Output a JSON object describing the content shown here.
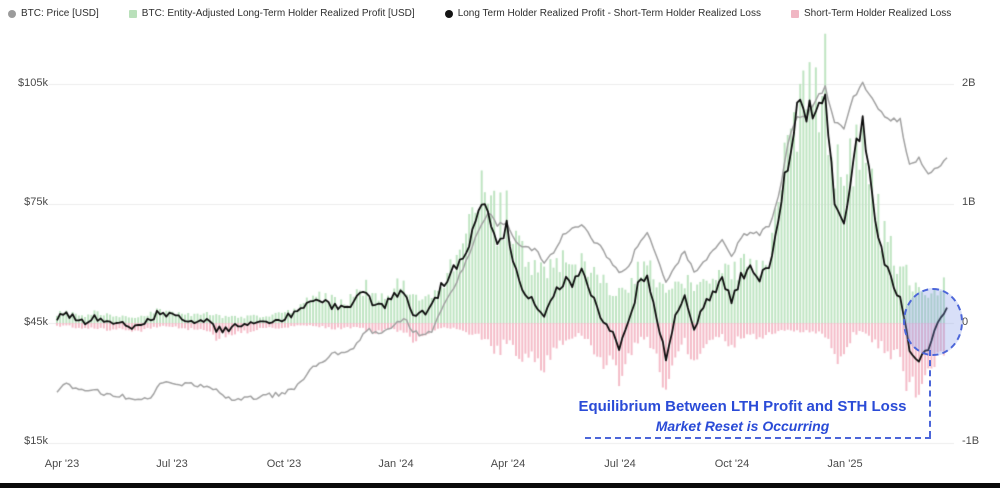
{
  "legend": {
    "items": [
      {
        "label": "BTC: Price [USD]",
        "color": "#9b9b9b",
        "marker": "circle"
      },
      {
        "label": "BTC: Entity-Adjusted Long-Term Holder Realized Profit [USD]",
        "color": "#b9e0ba",
        "marker": "square"
      },
      {
        "label": "Long Term Holder Realized Profit - Short-Term Holder Realized Loss",
        "color": "#141414",
        "marker": "circle"
      },
      {
        "label": "Short-Term Holder Realized Loss",
        "color": "#f0b6c3",
        "marker": "square"
      }
    ]
  },
  "axes": {
    "price_ticks": [
      "$105k",
      "$75k",
      "$45k",
      "$15k"
    ],
    "value_ticks": [
      "2B",
      "1B",
      "0",
      "-1B"
    ],
    "x_ticks": [
      "Apr '23",
      "Jul '23",
      "Oct '23",
      "Jan '24",
      "Apr '24",
      "Jul '24",
      "Oct '24",
      "Jan '25"
    ]
  },
  "annotation": {
    "line1": "Equilibrium Between LTH Profit and STH Loss",
    "line2": "Market Reset is Occurring",
    "color": "#2a4bd7"
  },
  "chart_data": {
    "type": "line",
    "x_start": "Apr 2023",
    "x_end": "Mar 2025",
    "x_unit": "week",
    "price_axis": {
      "tick_values_usd": [
        105000,
        75000,
        45000,
        15000
      ]
    },
    "value_axis": {
      "tick_values_B": [
        2,
        1,
        0,
        -1
      ]
    },
    "series": [
      {
        "name": "BTC: Price [USD]",
        "type": "line",
        "axis": "price",
        "color": "#a2a2a2",
        "values_k": [
          28.2,
          29.4,
          29.0,
          28.1,
          28.6,
          27.4,
          26.9,
          26.5,
          25.9,
          25.4,
          26.6,
          30.1,
          30.4,
          29.9,
          29.6,
          29.3,
          29.0,
          27.9,
          26.1,
          26.0,
          25.9,
          26.4,
          26.6,
          26.9,
          27.4,
          28.2,
          30.0,
          33.9,
          35.1,
          36.6,
          37.4,
          37.8,
          39.9,
          43.3,
          42.6,
          43.1,
          44.2,
          46.6,
          42.6,
          42.1,
          43.1,
          48.2,
          52.0,
          57.1,
          62.4,
          68.3,
          73.0,
          69.4,
          70.1,
          65.2,
          64.1,
          63.6,
          60.3,
          62.9,
          67.1,
          68.4,
          69.9,
          66.2,
          64.3,
          61.0,
          57.3,
          58.9,
          64.8,
          67.9,
          61.4,
          55.2,
          59.1,
          63.2,
          57.4,
          59.8,
          63.1,
          65.6,
          61.3,
          66.4,
          68.1,
          67.2,
          69.4,
          76.3,
          89.9,
          97.2,
          96.6,
          100.9,
          104.1,
          95.2,
          94.3,
          101.8,
          104.9,
          102.1,
          97.8,
          96.2,
          95.9,
          84.3,
          86.1,
          82.9,
          84.2,
          86.9
        ]
      },
      {
        "name": "BTC: Entity-Adjusted Long-Term Holder Realized Profit [USD]",
        "type": "bar",
        "axis": "value",
        "color": "#bfe4c2",
        "values_B": [
          0.08,
          0.1,
          0.07,
          0.06,
          0.09,
          0.07,
          0.06,
          0.06,
          0.05,
          0.05,
          0.08,
          0.12,
          0.1,
          0.08,
          0.07,
          0.07,
          0.08,
          0.06,
          0.05,
          0.05,
          0.05,
          0.06,
          0.06,
          0.07,
          0.08,
          0.1,
          0.15,
          0.2,
          0.22,
          0.2,
          0.18,
          0.17,
          0.25,
          0.3,
          0.22,
          0.2,
          0.28,
          0.35,
          0.22,
          0.18,
          0.2,
          0.35,
          0.45,
          0.55,
          0.75,
          1.05,
          1.1,
          0.85,
          0.95,
          0.7,
          0.55,
          0.45,
          0.4,
          0.45,
          0.5,
          0.45,
          0.55,
          0.45,
          0.35,
          0.3,
          0.25,
          0.3,
          0.45,
          0.5,
          0.35,
          0.25,
          0.3,
          0.35,
          0.3,
          0.35,
          0.4,
          0.45,
          0.4,
          0.5,
          0.55,
          0.5,
          0.6,
          0.9,
          1.4,
          1.9,
          1.8,
          1.95,
          2.0,
          1.3,
          1.1,
          1.5,
          1.75,
          1.2,
          0.8,
          0.6,
          0.5,
          0.35,
          0.3,
          0.25,
          0.28,
          0.35
        ]
      },
      {
        "name": "Short-Term Holder Realized Loss",
        "type": "bar",
        "axis": "value",
        "color": "#f4bcc8",
        "values_B": [
          -0.03,
          -0.02,
          -0.04,
          -0.05,
          -0.04,
          -0.05,
          -0.06,
          -0.05,
          -0.08,
          -0.06,
          -0.04,
          -0.03,
          -0.03,
          -0.04,
          -0.05,
          -0.05,
          -0.06,
          -0.12,
          -0.1,
          -0.08,
          -0.08,
          -0.06,
          -0.05,
          -0.04,
          -0.04,
          -0.03,
          -0.02,
          -0.02,
          -0.03,
          -0.04,
          -0.05,
          -0.04,
          -0.03,
          -0.06,
          -0.08,
          -0.05,
          -0.05,
          -0.08,
          -0.15,
          -0.1,
          -0.06,
          -0.05,
          -0.04,
          -0.05,
          -0.08,
          -0.1,
          -0.15,
          -0.25,
          -0.15,
          -0.25,
          -0.3,
          -0.28,
          -0.35,
          -0.2,
          -0.15,
          -0.12,
          -0.1,
          -0.2,
          -0.3,
          -0.35,
          -0.45,
          -0.3,
          -0.15,
          -0.12,
          -0.3,
          -0.55,
          -0.25,
          -0.15,
          -0.35,
          -0.2,
          -0.15,
          -0.1,
          -0.2,
          -0.12,
          -0.1,
          -0.15,
          -0.1,
          -0.06,
          -0.05,
          -0.08,
          -0.06,
          -0.08,
          -0.1,
          -0.3,
          -0.25,
          -0.1,
          -0.08,
          -0.15,
          -0.2,
          -0.25,
          -0.3,
          -0.55,
          -0.6,
          -0.45,
          -0.3,
          -0.2
        ]
      },
      {
        "name": "Long Term Holder Realized Profit - Short-Term Holder Realized Loss",
        "type": "line",
        "axis": "value",
        "color": "#0d0d0d",
        "derived": "lth_profit_minus_sth_loss"
      }
    ]
  }
}
